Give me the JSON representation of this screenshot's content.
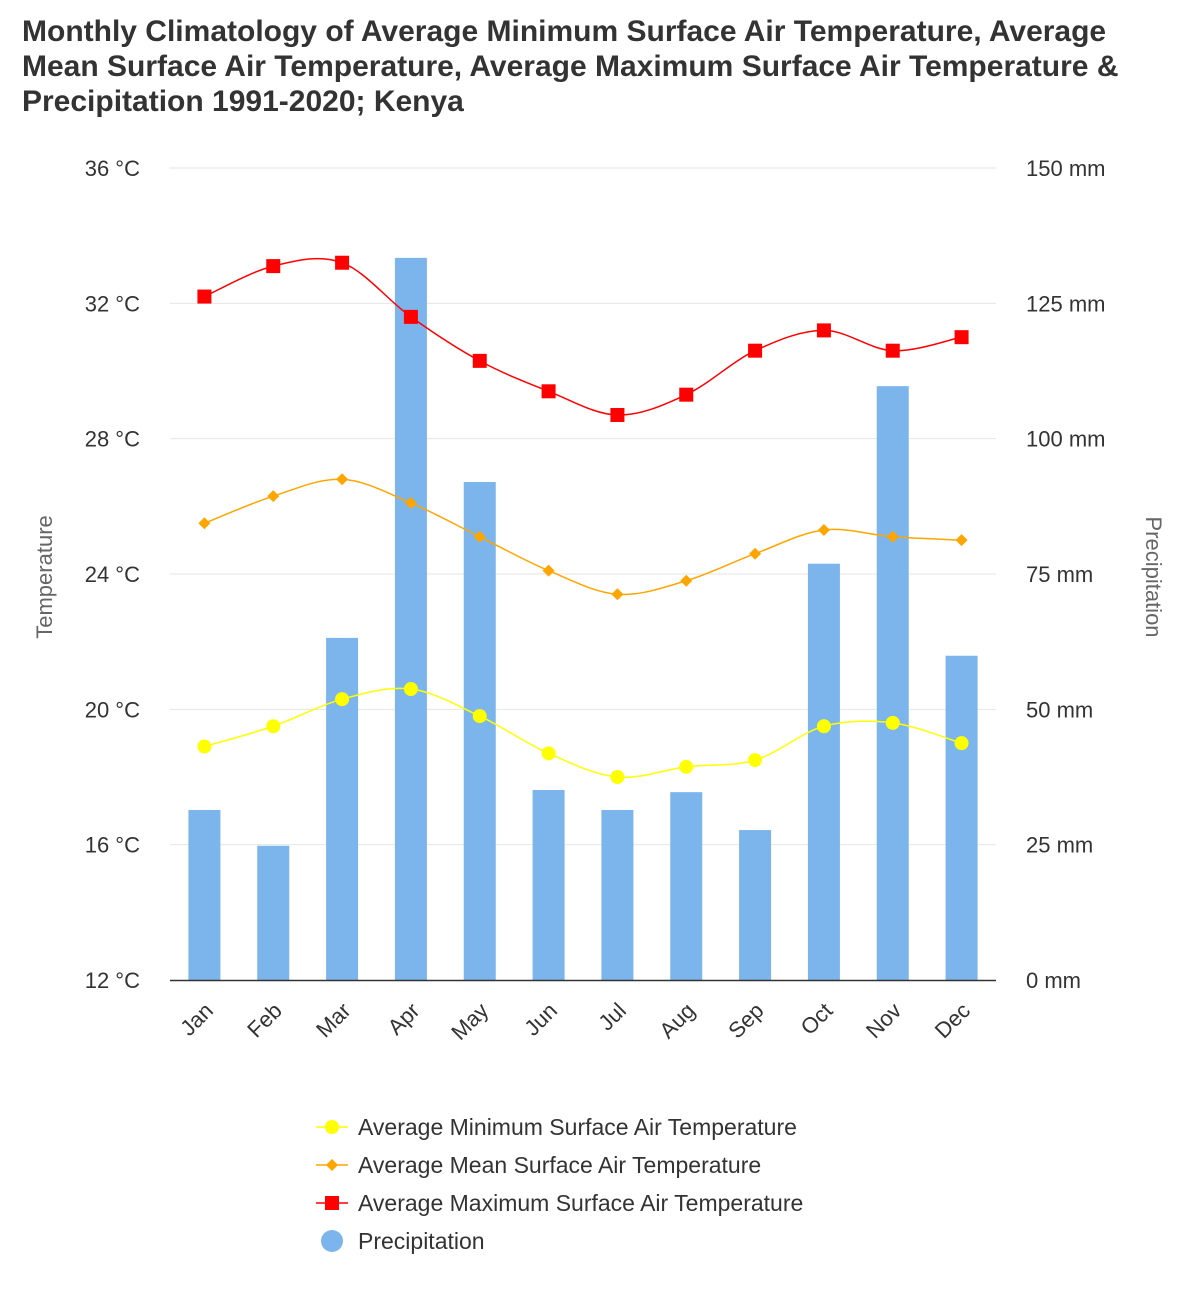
{
  "chart_data": {
    "type": "bar+line",
    "title": "Monthly Climatology of Average Minimum Surface Air Temperature, Average Mean Surface Air Temperature, Average Maximum Surface Air Temperature & Precipitation 1991-2020; Kenya",
    "categories": [
      "Jan",
      "Feb",
      "Mar",
      "Apr",
      "May",
      "Jun",
      "Jul",
      "Aug",
      "Sep",
      "Oct",
      "Nov",
      "Dec"
    ],
    "y_left": {
      "label": "Temperature",
      "range": [
        12,
        36
      ],
      "ticks": [
        12,
        16,
        20,
        24,
        28,
        32,
        36
      ],
      "unit": "°C"
    },
    "y_right": {
      "label": "Precipitation",
      "range": [
        0,
        150
      ],
      "ticks": [
        0,
        25,
        50,
        75,
        100,
        125,
        150
      ],
      "unit": "mm"
    },
    "grid": true,
    "legend_position": "bottom",
    "series": [
      {
        "name": "Average Minimum Surface Air Temperature",
        "type": "line",
        "axis": "left",
        "marker": "circle",
        "color": "#ffff00",
        "values": [
          18.9,
          19.5,
          20.3,
          20.6,
          19.8,
          18.7,
          18.0,
          18.3,
          18.5,
          19.5,
          19.6,
          19.0
        ]
      },
      {
        "name": "Average Mean Surface Air Temperature",
        "type": "line",
        "axis": "left",
        "marker": "diamond",
        "color": "#ffa500",
        "values": [
          25.5,
          26.3,
          26.8,
          26.1,
          25.1,
          24.1,
          23.4,
          23.8,
          24.6,
          25.3,
          25.1,
          25.0
        ]
      },
      {
        "name": "Average Maximum Surface Air Temperature",
        "type": "line",
        "axis": "left",
        "marker": "square",
        "color": "#ff0000",
        "values": [
          32.2,
          33.1,
          33.2,
          31.6,
          30.3,
          29.4,
          28.7,
          29.3,
          30.6,
          31.2,
          30.6,
          31.0
        ]
      },
      {
        "name": "Precipitation",
        "type": "bar",
        "axis": "right",
        "marker": "circle",
        "color": "#7cb5ec",
        "values": [
          31.4,
          24.8,
          63.2,
          133.4,
          92.0,
          35.1,
          31.4,
          34.7,
          27.7,
          76.9,
          109.7,
          59.9
        ]
      }
    ]
  }
}
